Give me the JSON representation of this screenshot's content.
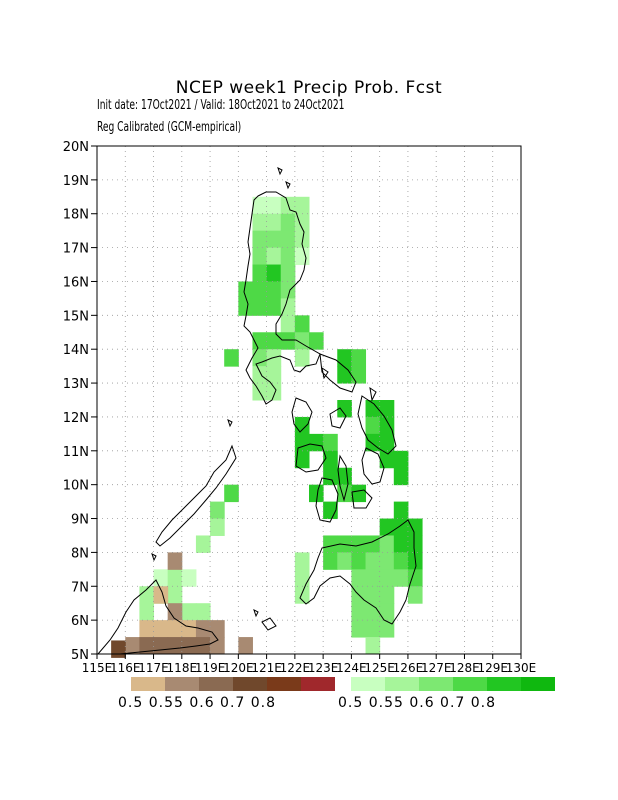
{
  "title": "NCEP week1 Precip Prob. Fcst",
  "init_line": "Init date: 17Oct2021 / Valid: 18Oct2021 to 24Oct2021",
  "calibration_line": "Reg Calibrated (GCM-empirical)",
  "lat_labels": [
    "5N",
    "6N",
    "7N",
    "8N",
    "9N",
    "10N",
    "11N",
    "12N",
    "13N",
    "14N",
    "15N",
    "16N",
    "17N",
    "18N",
    "19N",
    "20N"
  ],
  "lon_labels": [
    "115E",
    "116E",
    "117E",
    "118E",
    "119E",
    "120E",
    "121E",
    "122E",
    "123E",
    "124E",
    "125E",
    "126E",
    "127E",
    "128E",
    "129E",
    "130E"
  ],
  "dry_legend": {
    "colors": [
      "#d9b88a",
      "#a88a72",
      "#8a6a52",
      "#70482c",
      "#7a3a1a",
      "#a0282c"
    ],
    "labels_text": "0.5 0.55 0.6  0.7  0.8"
  },
  "wet_legend": {
    "colors": [
      "#c8ffc0",
      "#a6f59a",
      "#7de872",
      "#4ed946",
      "#22c622",
      "#0fb80f"
    ],
    "labels_text": "0.5 0.55 0.6  0.7  0.8"
  },
  "map_data": {
    "extent": {
      "lon": [
        115,
        130
      ],
      "lat": [
        5,
        20
      ]
    },
    "cell_deg": 0.5,
    "wet_cells": [
      [
        120.5,
        18,
        0
      ],
      [
        121,
        18,
        0
      ],
      [
        121.5,
        18,
        1
      ],
      [
        122,
        18,
        1
      ],
      [
        120.5,
        17.5,
        1
      ],
      [
        121,
        17.5,
        1
      ],
      [
        121.5,
        17.5,
        2
      ],
      [
        122,
        17.5,
        1
      ],
      [
        120.5,
        17,
        2
      ],
      [
        121,
        17,
        2
      ],
      [
        121.5,
        17,
        2
      ],
      [
        122,
        17,
        1
      ],
      [
        120.5,
        16.5,
        2
      ],
      [
        121,
        16.5,
        1
      ],
      [
        121.5,
        16.5,
        2
      ],
      [
        122,
        16.5,
        0
      ],
      [
        120.5,
        16,
        3
      ],
      [
        121,
        16,
        4
      ],
      [
        121.5,
        16,
        2
      ],
      [
        120,
        15.5,
        3
      ],
      [
        120.5,
        15.5,
        3
      ],
      [
        121,
        15.5,
        3
      ],
      [
        121.5,
        15.5,
        2
      ],
      [
        120,
        15,
        3
      ],
      [
        120.5,
        15,
        3
      ],
      [
        121,
        15,
        3
      ],
      [
        121.5,
        15,
        1
      ],
      [
        121.5,
        14.5,
        1
      ],
      [
        122,
        14.5,
        3
      ],
      [
        120.5,
        14,
        3
      ],
      [
        121,
        14,
        3
      ],
      [
        121.5,
        14,
        3
      ],
      [
        122,
        14,
        2
      ],
      [
        122.5,
        14,
        3
      ],
      [
        119.5,
        13.5,
        3
      ],
      [
        120.5,
        13.5,
        2
      ],
      [
        121,
        13.5,
        1
      ],
      [
        122,
        13.5,
        1
      ],
      [
        123.5,
        13.5,
        4
      ],
      [
        124,
        13.5,
        3
      ],
      [
        120.5,
        13,
        1
      ],
      [
        121,
        13,
        1
      ],
      [
        123.5,
        13,
        4
      ],
      [
        124,
        13,
        3
      ],
      [
        120.5,
        12.5,
        1
      ],
      [
        121,
        12.5,
        1
      ],
      [
        123.5,
        12,
        4
      ],
      [
        124.5,
        12,
        4
      ],
      [
        125,
        12,
        4
      ],
      [
        122,
        11.5,
        4
      ],
      [
        124.5,
        11.5,
        3
      ],
      [
        125,
        11.5,
        4
      ],
      [
        122,
        11,
        4
      ],
      [
        122.5,
        11,
        4
      ],
      [
        123,
        11,
        3
      ],
      [
        124.5,
        11,
        4
      ],
      [
        125,
        11,
        4
      ],
      [
        122,
        10.5,
        4
      ],
      [
        123,
        10.5,
        4
      ],
      [
        125,
        10.5,
        4
      ],
      [
        125.5,
        10.5,
        4
      ],
      [
        123,
        10,
        4
      ],
      [
        123.5,
        10,
        4
      ],
      [
        125.5,
        10,
        4
      ],
      [
        119.5,
        9.5,
        3
      ],
      [
        122.5,
        9.5,
        4
      ],
      [
        123.5,
        9.5,
        3
      ],
      [
        124,
        9.5,
        4
      ],
      [
        119,
        9,
        2
      ],
      [
        123,
        9,
        4
      ],
      [
        125.5,
        9,
        4
      ],
      [
        119,
        8.5,
        1
      ],
      [
        125,
        8.5,
        4
      ],
      [
        125.5,
        8.5,
        4
      ],
      [
        126,
        8.5,
        4
      ],
      [
        118.5,
        8,
        1
      ],
      [
        123,
        8,
        3
      ],
      [
        123.5,
        8,
        3
      ],
      [
        124,
        8,
        3
      ],
      [
        124.5,
        8,
        3
      ],
      [
        125,
        8,
        2
      ],
      [
        125.5,
        8,
        4
      ],
      [
        126,
        8,
        4
      ],
      [
        122,
        7.5,
        1
      ],
      [
        123,
        7.5,
        3
      ],
      [
        123.5,
        7.5,
        2
      ],
      [
        124,
        7.5,
        3
      ],
      [
        124.5,
        7.5,
        2
      ],
      [
        125,
        7.5,
        2
      ],
      [
        125.5,
        7.5,
        3
      ],
      [
        126,
        7.5,
        4
      ],
      [
        122,
        7,
        1
      ],
      [
        124,
        7,
        2
      ],
      [
        124.5,
        7,
        2
      ],
      [
        125,
        7,
        2
      ],
      [
        125.5,
        7,
        2
      ],
      [
        126,
        7,
        3
      ],
      [
        122,
        6.5,
        1
      ],
      [
        124,
        6.5,
        2
      ],
      [
        124.5,
        6.5,
        2
      ],
      [
        125,
        6.5,
        2
      ],
      [
        126,
        6.5,
        2
      ],
      [
        124,
        6,
        2
      ],
      [
        124.5,
        6,
        2
      ],
      [
        125,
        6,
        2
      ],
      [
        124,
        5.5,
        2
      ],
      [
        124.5,
        5.5,
        2
      ],
      [
        125,
        5.5,
        2
      ],
      [
        124.5,
        5,
        1
      ],
      [
        117,
        7,
        0
      ],
      [
        117.5,
        7,
        1
      ],
      [
        118,
        7,
        0
      ],
      [
        116.5,
        6.5,
        1
      ],
      [
        117,
        6.5,
        1
      ],
      [
        117.5,
        6.5,
        1
      ],
      [
        116.5,
        6,
        1
      ],
      [
        118,
        6,
        1
      ],
      [
        118.5,
        6,
        1
      ]
    ],
    "dry_cells": [
      [
        117.5,
        7.5,
        1
      ],
      [
        117,
        6.5,
        0
      ],
      [
        117.5,
        6,
        1
      ],
      [
        116.5,
        5.5,
        0
      ],
      [
        117,
        5.5,
        0
      ],
      [
        117.5,
        5.5,
        0
      ],
      [
        118,
        5.5,
        0
      ],
      [
        118.5,
        5.5,
        1
      ],
      [
        119,
        5.5,
        1
      ],
      [
        116,
        5,
        1
      ],
      [
        116.5,
        5,
        2
      ],
      [
        117,
        5,
        2
      ],
      [
        117.5,
        5,
        2
      ],
      [
        118,
        5,
        2
      ],
      [
        118.5,
        5,
        2
      ],
      [
        119,
        5,
        1
      ],
      [
        120,
        5,
        1
      ],
      [
        115.5,
        4.9,
        3
      ]
    ]
  }
}
